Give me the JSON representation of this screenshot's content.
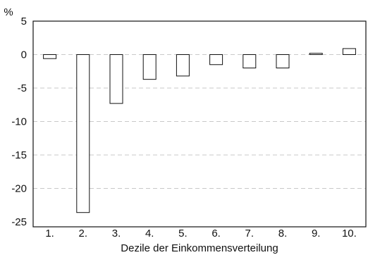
{
  "chart_data": {
    "type": "bar",
    "unit_label": "%",
    "xlabel": "Dezile der Einkommensverteilung",
    "ylabel": "",
    "categories": [
      "1.",
      "2.",
      "3.",
      "4.",
      "5.",
      "6.",
      "7.",
      "8.",
      "9.",
      "10."
    ],
    "values": [
      -0.6,
      -23.6,
      -7.3,
      -3.7,
      -3.2,
      -1.5,
      -2.0,
      -2.0,
      0.2,
      0.9
    ],
    "ylim": [
      -25,
      5
    ],
    "yticks": [
      5,
      0,
      -5,
      -10,
      -15,
      -20,
      -25
    ],
    "grid": "horizontal-dashed",
    "legend": "none",
    "colors": {
      "bar_fill": "#ffffff",
      "bar_stroke": "#111111",
      "grid": "#b8b8b8",
      "frame": "#111111"
    }
  }
}
